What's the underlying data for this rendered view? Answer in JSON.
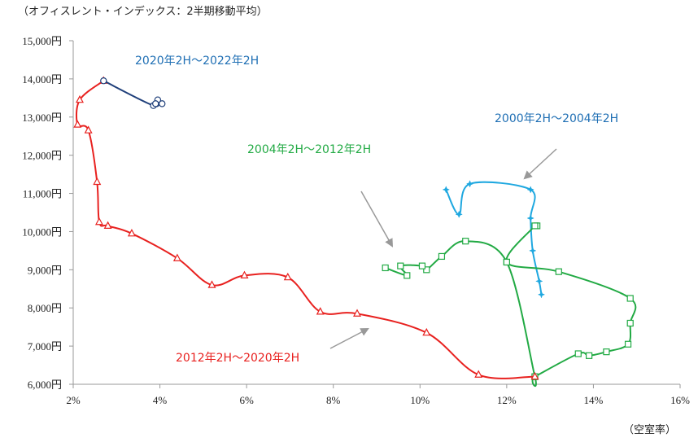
{
  "chart_data": {
    "type": "line",
    "title": "（オフィスレント・インデックス：2半期移動平均）",
    "xlabel": "（空室率）",
    "ylabel": "",
    "xlim": [
      2,
      16
    ],
    "ylim": [
      6000,
      15000
    ],
    "x_ticks": [
      2,
      4,
      6,
      8,
      10,
      12,
      14,
      16
    ],
    "x_tick_labels": [
      "2%",
      "4%",
      "6%",
      "8%",
      "10%",
      "12%",
      "14%",
      "16%"
    ],
    "y_ticks": [
      6000,
      7000,
      8000,
      9000,
      10000,
      11000,
      12000,
      13000,
      14000,
      15000
    ],
    "y_tick_labels": [
      "6,000円",
      "7,000円",
      "8,000円",
      "9,000円",
      "10,000円",
      "11,000円",
      "12,000円",
      "13,000円",
      "14,000円",
      "15,000円"
    ],
    "series": [
      {
        "name": "2000年2H～2004年2H",
        "color": "#1fa8e0",
        "marker": "star",
        "x": [
          10.6,
          10.9,
          11.15,
          12.55,
          12.55,
          12.6,
          12.75,
          12.8
        ],
        "y": [
          11100,
          10450,
          11250,
          11100,
          10350,
          9500,
          8700,
          8350
        ]
      },
      {
        "name": "2004年2H～2012年2H",
        "color": "#22aa44",
        "marker": "square",
        "x": [
          12.7,
          12.65,
          12.0,
          13.2,
          14.85,
          14.85,
          14.8,
          14.3,
          13.9,
          13.65,
          12.65,
          12.65,
          12.0,
          11.05,
          10.5,
          10.15,
          10.05,
          9.55,
          9.7,
          9.2
        ],
        "y": [
          10150,
          10150,
          9200,
          8950,
          8250,
          7600,
          7050,
          6850,
          6750,
          6800,
          6200,
          6200,
          9200,
          9750,
          9350,
          9000,
          9100,
          9100,
          8850,
          9050
        ]
      },
      {
        "name": "2012年2H～2020年2H",
        "color": "#e8211f",
        "marker": "triangle",
        "x": [
          12.65,
          11.35,
          10.15,
          8.55,
          7.7,
          6.95,
          5.95,
          5.2,
          4.4,
          3.35,
          2.8,
          2.6,
          2.55,
          2.35,
          2.1,
          2.15,
          2.7
        ],
        "y": [
          6200,
          6250,
          7350,
          7850,
          7900,
          8800,
          8850,
          8600,
          9300,
          9950,
          10150,
          10250,
          11300,
          12650,
          12800,
          13450,
          13950
        ]
      },
      {
        "name": "2020年2H～2022年2H",
        "color": "#1f3f7a",
        "marker": "circle",
        "x": [
          2.7,
          3.85,
          3.95,
          4.05,
          3.9
        ],
        "y": [
          13950,
          13300,
          13450,
          13350,
          13350
        ]
      }
    ],
    "annotations": [
      {
        "text": "2020年2H～2022年2H",
        "color": "#1f6fb4"
      },
      {
        "text": "2000年2H～2004年2H",
        "color": "#1f6fb4"
      },
      {
        "text": "2004年2H～2012年2H",
        "color": "#22aa44"
      },
      {
        "text": "2012年2H～2020年2H",
        "color": "#e8211f"
      }
    ],
    "grid": false,
    "legend": "none"
  }
}
